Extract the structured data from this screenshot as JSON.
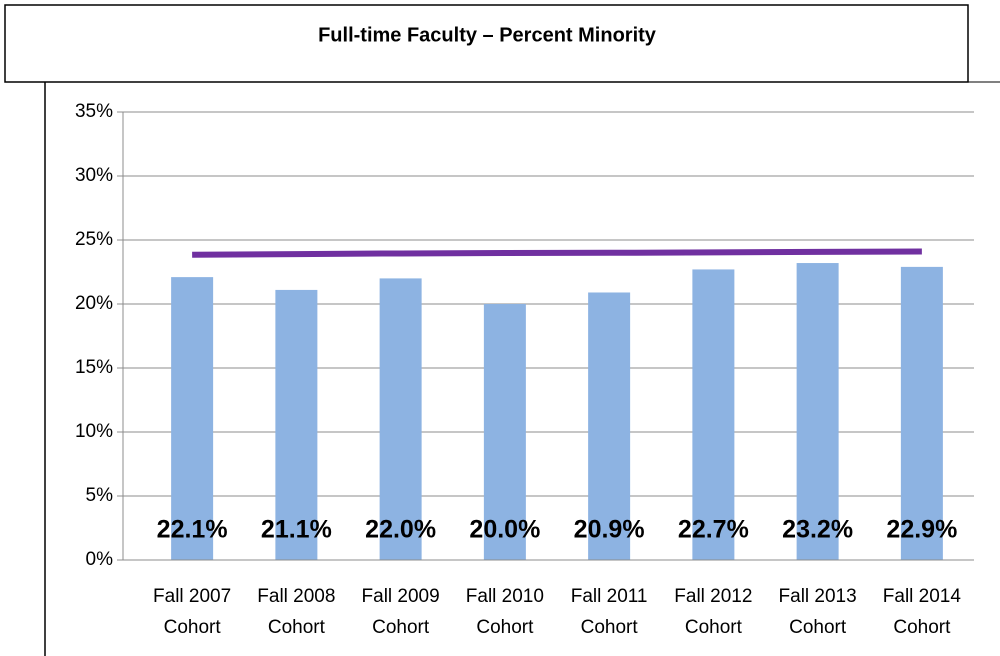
{
  "chart_data": {
    "type": "bar",
    "title": "Full-time Faculty – Percent Minority",
    "categories": [
      [
        "Fall 2007",
        "Cohort"
      ],
      [
        "Fall 2008",
        "Cohort"
      ],
      [
        "Fall 2009",
        "Cohort"
      ],
      [
        "Fall 2010",
        "Cohort"
      ],
      [
        "Fall 2011",
        "Cohort"
      ],
      [
        "Fall 2012",
        "Cohort"
      ],
      [
        "Fall 2013",
        "Cohort"
      ],
      [
        "Fall 2014",
        "Cohort"
      ]
    ],
    "values": [
      22.1,
      21.1,
      22.0,
      20.0,
      20.9,
      22.7,
      23.2,
      22.9
    ],
    "value_labels": [
      "22.1%",
      "21.1%",
      "22.0%",
      "20.0%",
      "20.9%",
      "22.7%",
      "23.2%",
      "22.9%"
    ],
    "color": "#8db3e2",
    "lines": [
      {
        "type": "line",
        "color": "#7030a0",
        "values": [
          23.85,
          23.9,
          23.95,
          23.98,
          24.0,
          24.03,
          24.07,
          24.1
        ]
      }
    ],
    "ylim": [
      0,
      35
    ],
    "yticks": [
      {
        "value": 0,
        "label": "0%"
      },
      {
        "value": 5,
        "label": "5%"
      },
      {
        "value": 10,
        "label": "10%"
      },
      {
        "value": 15,
        "label": "15%"
      },
      {
        "value": 20,
        "label": "20%"
      },
      {
        "value": 25,
        "label": "25%"
      },
      {
        "value": 30,
        "label": "30%"
      },
      {
        "value": 35,
        "label": "35%"
      }
    ],
    "grid": true
  }
}
